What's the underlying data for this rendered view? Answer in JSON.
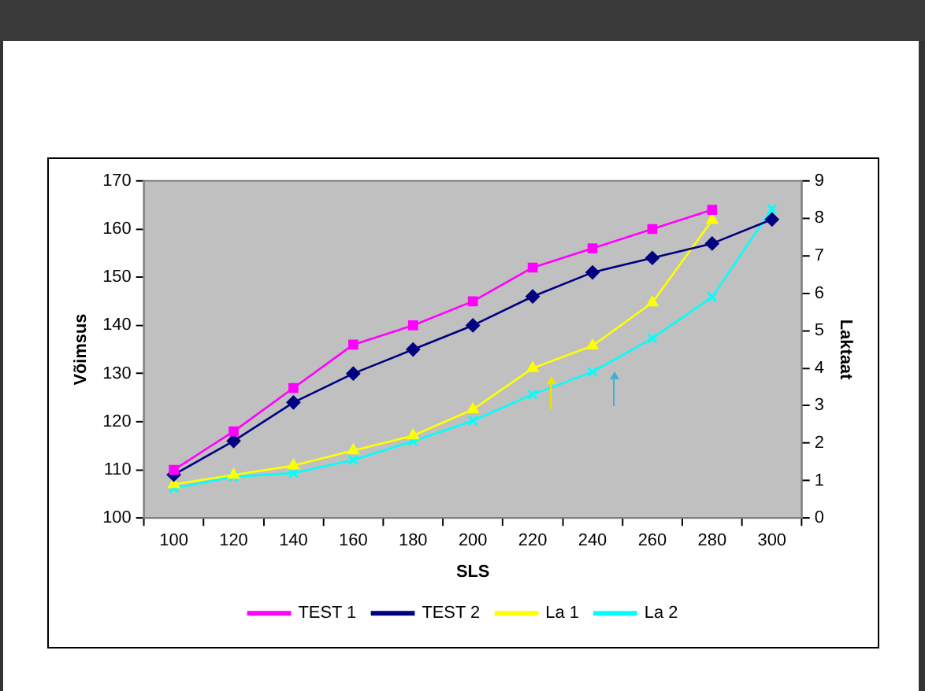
{
  "chart_data": {
    "type": "line",
    "categories": [
      "100",
      "120",
      "140",
      "160",
      "180",
      "200",
      "220",
      "240",
      "260",
      "280",
      "300"
    ],
    "xlabel": "SLS",
    "ylabel": "Võimsus",
    "y2label": "Laktaat",
    "ylim": [
      100,
      170
    ],
    "yticks": [
      100,
      110,
      120,
      130,
      140,
      150,
      160,
      170
    ],
    "y2lim": [
      0,
      9
    ],
    "y2ticks": [
      0,
      1,
      2,
      3,
      4,
      5,
      6,
      7,
      8,
      9
    ],
    "grid": false,
    "legend": "bottom",
    "series": [
      {
        "name": "TEST 1",
        "color": "#ff00ff",
        "marker": "square",
        "values": [
          110,
          118,
          127,
          136,
          140,
          145,
          152,
          156,
          160,
          164,
          null
        ]
      },
      {
        "name": "TEST 2",
        "color": "#000080",
        "marker": "diamond",
        "values": [
          109,
          116,
          124,
          130,
          135,
          140,
          146,
          151,
          154,
          157,
          162
        ]
      },
      {
        "name": "La 1",
        "color": "#ffff00",
        "marker": "triangle",
        "axis": "y2",
        "values": [
          0.9,
          1.15,
          1.4,
          1.8,
          2.2,
          2.9,
          4.0,
          4.6,
          5.75,
          7.95,
          null
        ]
      },
      {
        "name": "La 2",
        "color": "#00ffff",
        "marker": "cross",
        "axis": "y2",
        "values": [
          0.8,
          1.1,
          1.2,
          1.55,
          2.05,
          2.6,
          3.3,
          3.9,
          4.8,
          5.9,
          8.25
        ]
      }
    ]
  }
}
